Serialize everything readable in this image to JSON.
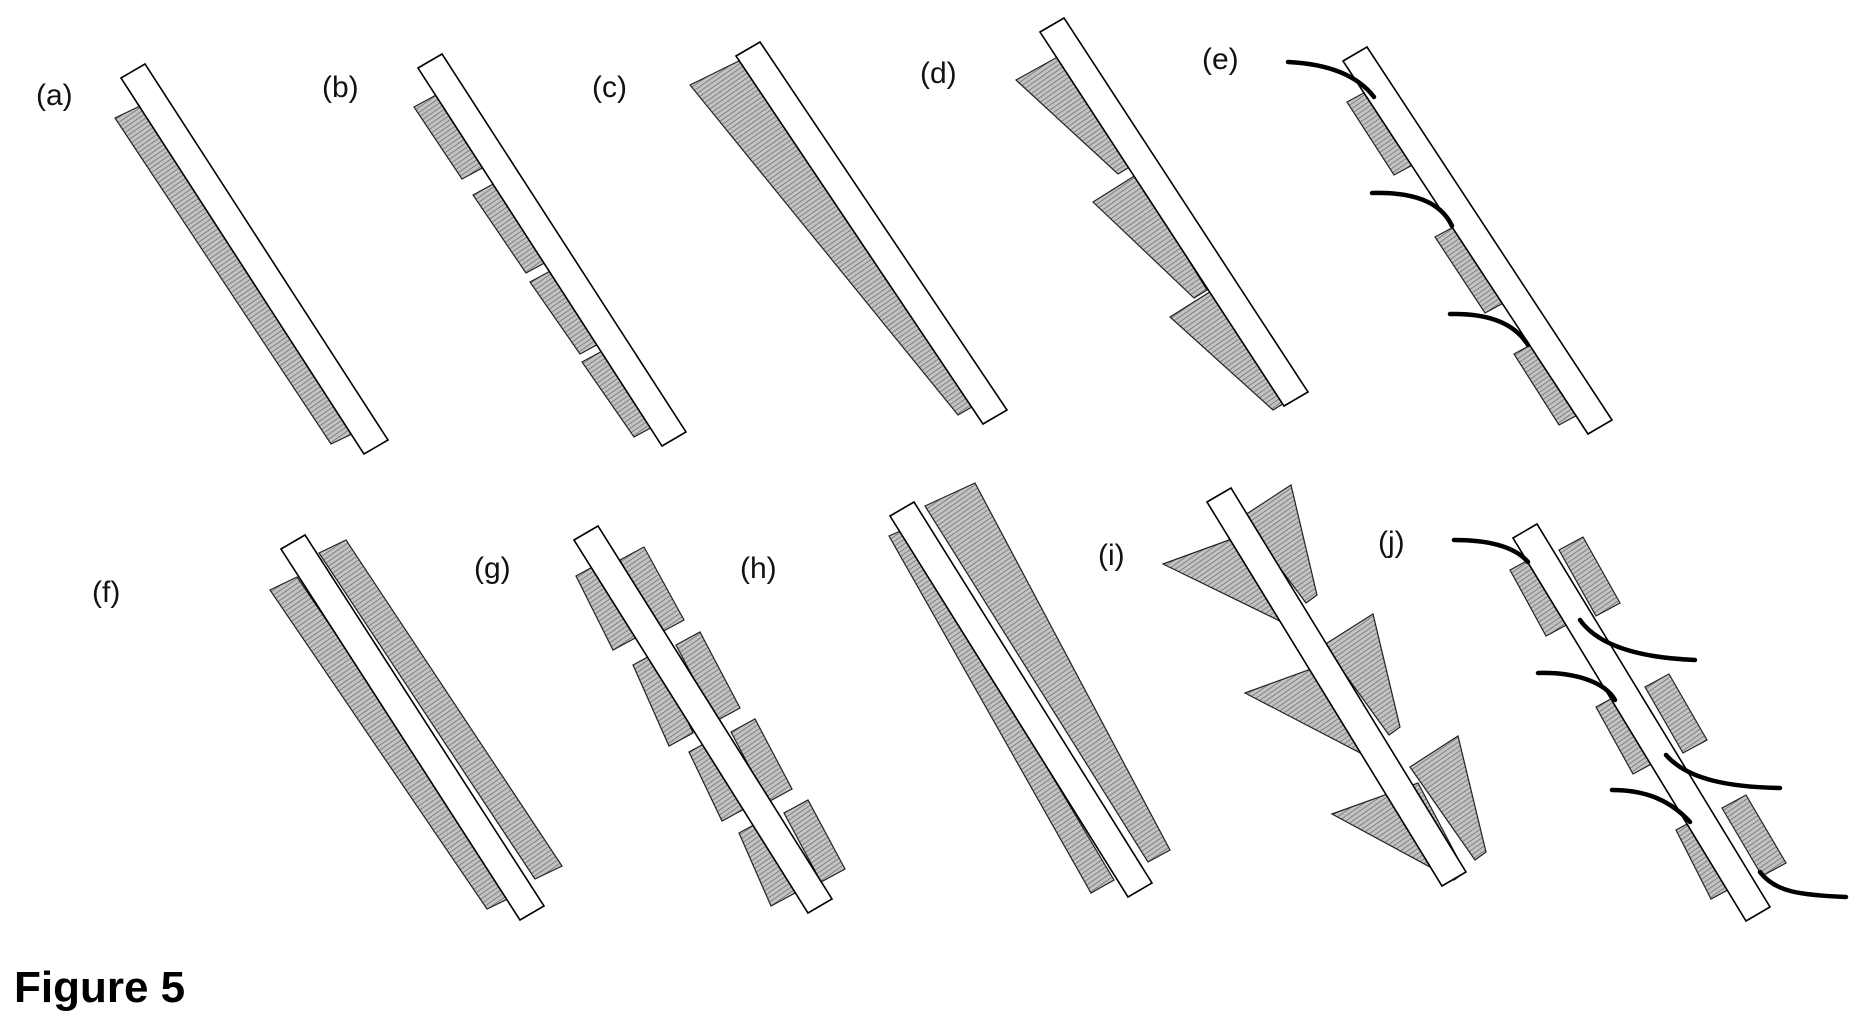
{
  "figure": {
    "caption": "Figure 5",
    "colors": {
      "background": "#ffffff",
      "strip_fill": "#ffffff",
      "outline": "#000000",
      "shaded_fill": "#b8b8b8",
      "wire": "#000000"
    },
    "panels": [
      {
        "id": "a",
        "label": "(a)"
      },
      {
        "id": "b",
        "label": "(b)"
      },
      {
        "id": "c",
        "label": "(c)"
      },
      {
        "id": "d",
        "label": "(d)"
      },
      {
        "id": "e",
        "label": "(e)"
      },
      {
        "id": "f",
        "label": "(f)"
      },
      {
        "id": "g",
        "label": "(g)"
      },
      {
        "id": "h",
        "label": "(h)"
      },
      {
        "id": "i",
        "label": "(i)"
      },
      {
        "id": "j",
        "label": "(j)"
      }
    ]
  }
}
